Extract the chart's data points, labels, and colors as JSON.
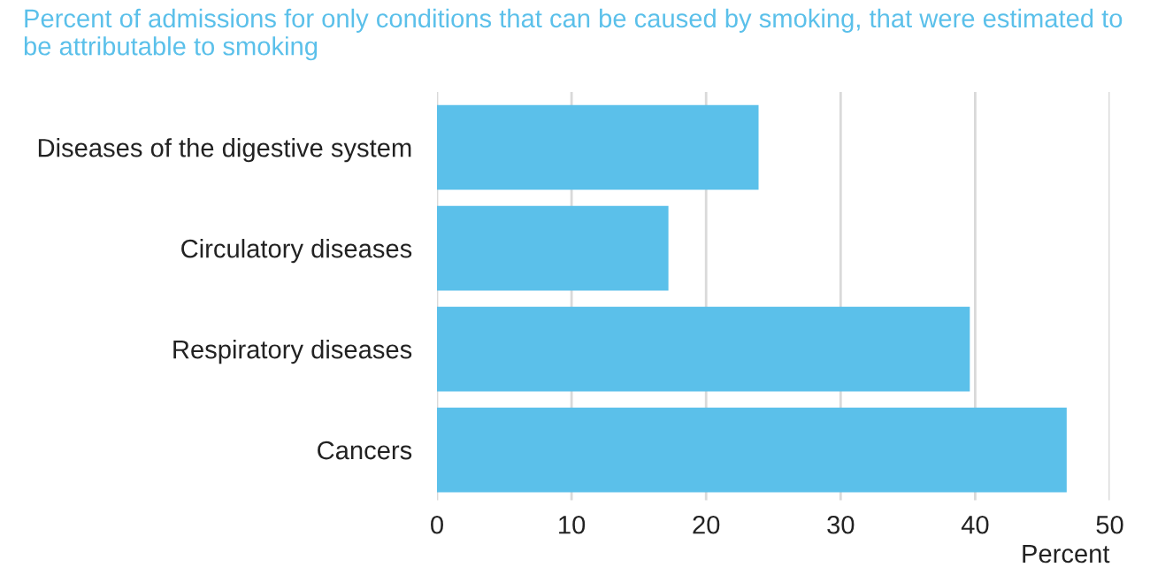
{
  "chart_data": {
    "type": "bar",
    "orientation": "horizontal",
    "title": "Percent of admissions for only conditions that can be caused by smoking, that were estimated to be attributable to smoking",
    "categories": [
      "Diseases of the digestive system",
      "Circulatory diseases",
      "Respiratory diseases",
      "Cancers"
    ],
    "values": [
      23.9,
      17.2,
      39.6,
      46.8
    ],
    "color": "#5bc0ea",
    "xlabel": "Percent",
    "xlim": [
      0,
      50
    ],
    "xticks": [
      0,
      10,
      20,
      30,
      40,
      50
    ],
    "grid": "x"
  }
}
